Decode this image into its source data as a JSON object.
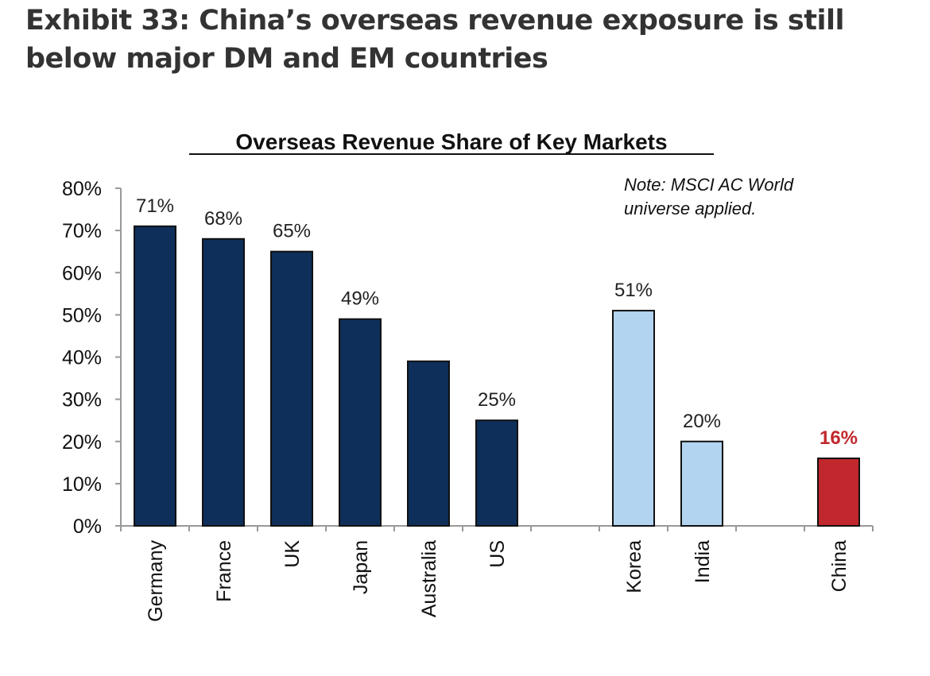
{
  "exhibit_title": "Exhibit 33: China’s overseas revenue exposure is still below major DM and EM countries",
  "chart_data": {
    "type": "bar",
    "title": "Overseas Revenue Share of Key Markets",
    "note": [
      "Note: MSCI AC World",
      "universe applied."
    ],
    "categories": [
      "Germany",
      "France",
      "UK",
      "Japan",
      "Australia",
      "US",
      "Korea",
      "India",
      "China"
    ],
    "values": [
      71,
      68,
      65,
      49,
      39,
      25,
      51,
      20,
      16
    ],
    "data_labels": [
      "71%",
      "68%",
      "65%",
      "49%",
      "",
      "25%",
      "51%",
      "20%",
      "16%"
    ],
    "groups": [
      "DM",
      "DM",
      "DM",
      "DM",
      "DM",
      "DM",
      "EM",
      "EM",
      "China"
    ],
    "group_colors": {
      "DM": "#0d2f5a",
      "EM": "#b3d4f0",
      "China": "#c0282d"
    },
    "label_colors": {
      "DM": "#222222",
      "EM": "#222222",
      "China": "#c0282d"
    },
    "ylim": [
      0,
      80
    ],
    "yticks": [
      "0%",
      "10%",
      "20%",
      "30%",
      "40%",
      "50%",
      "60%",
      "70%",
      "80%"
    ],
    "xlabel": "",
    "ylabel": "",
    "grid": false,
    "legend": "none"
  }
}
